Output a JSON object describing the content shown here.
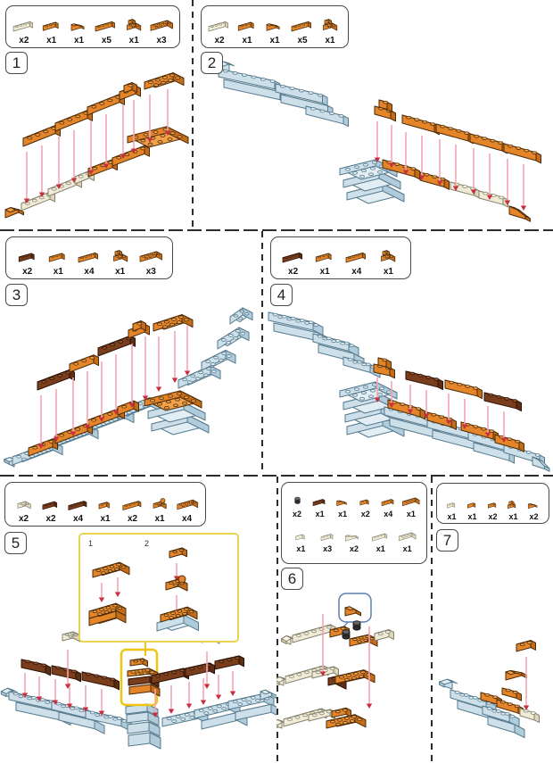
{
  "document": {
    "type": "brick-building-instructions"
  },
  "colors": {
    "orange": {
      "top": "#F3A24A",
      "front": "#E5852A",
      "side": "#C46C18",
      "line": "#4D2C09"
    },
    "cream": {
      "top": "#FAF8EC",
      "front": "#EFEBD6",
      "side": "#DCD6BC",
      "line": "#86816C"
    },
    "blue": {
      "top": "#E3EEF4",
      "front": "#CDE0EA",
      "side": "#B0CCDB",
      "line": "#567A8E"
    },
    "brown": {
      "top": "#96552C",
      "front": "#7A3E1C",
      "side": "#5E2E13",
      "line": "#2B1206"
    },
    "black": {
      "top": "#6B6B6B",
      "front": "#404040",
      "side": "#2E2E2E",
      "line": "#111111"
    },
    "arrow_stem": "#F3A7B3",
    "arrow_head": "#C72F40",
    "inset_border": "#E8D44F",
    "highlight": "#EFC514",
    "callout_border": "#5B7FB0",
    "box_border": "#4A4A4A",
    "divider": "#2B2B2B"
  },
  "steps": [
    {
      "number": "1",
      "parts": [
        {
          "shape": "1x4",
          "color": "cream",
          "qty": "x2"
        },
        {
          "shape": "1x3",
          "color": "orange",
          "qty": "x1"
        },
        {
          "shape": "slope",
          "color": "orange",
          "qty": "x1"
        },
        {
          "shape": "1x4",
          "color": "orange",
          "qty": "x5"
        },
        {
          "shape": "corner",
          "color": "orange",
          "qty": "x1"
        },
        {
          "shape": "2x4",
          "color": "orange",
          "qty": "x3"
        }
      ]
    },
    {
      "number": "2",
      "parts": [
        {
          "shape": "1x4",
          "color": "cream",
          "qty": "x2"
        },
        {
          "shape": "1x3",
          "color": "orange",
          "qty": "x1"
        },
        {
          "shape": "slope",
          "color": "orange",
          "qty": "x1"
        },
        {
          "shape": "1x4",
          "color": "orange",
          "qty": "x5"
        },
        {
          "shape": "corner",
          "color": "orange",
          "qty": "x1"
        }
      ]
    },
    {
      "number": "3",
      "parts": [
        {
          "shape": "1x3",
          "color": "brown",
          "qty": "x2"
        },
        {
          "shape": "1x3",
          "color": "orange",
          "qty": "x1"
        },
        {
          "shape": "1x4",
          "color": "orange",
          "qty": "x4"
        },
        {
          "shape": "corner",
          "color": "orange",
          "qty": "x1"
        },
        {
          "shape": "2x4",
          "color": "orange",
          "qty": "x3"
        }
      ]
    },
    {
      "number": "4",
      "parts": [
        {
          "shape": "1x4",
          "color": "brown",
          "qty": "x2"
        },
        {
          "shape": "1x3",
          "color": "orange",
          "qty": "x1"
        },
        {
          "shape": "1x4",
          "color": "orange",
          "qty": "x4"
        },
        {
          "shape": "corner",
          "color": "orange",
          "qty": "x1"
        }
      ]
    },
    {
      "number": "5",
      "inset_labels": [
        "1",
        "2"
      ],
      "parts": [
        {
          "shape": "2x2",
          "color": "cream",
          "qty": "x2"
        },
        {
          "shape": "1x3",
          "color": "brown",
          "qty": "x2"
        },
        {
          "shape": "1x4",
          "color": "brown",
          "qty": "x4"
        },
        {
          "shape": "1x2",
          "color": "orange",
          "qty": "x1"
        },
        {
          "shape": "1x4",
          "color": "orange",
          "qty": "x2"
        },
        {
          "shape": "corner-knob",
          "color": "orange",
          "qty": "x1"
        },
        {
          "shape": "2x4",
          "color": "orange",
          "qty": "x4"
        }
      ]
    },
    {
      "number": "6",
      "parts_rows": [
        [
          {
            "shape": "round",
            "color": "black",
            "qty": "x2"
          },
          {
            "shape": "1x3",
            "color": "brown",
            "qty": "x1"
          },
          {
            "shape": "slope",
            "color": "orange",
            "qty": "x1"
          },
          {
            "shape": "1x2",
            "color": "orange",
            "qty": "x2"
          },
          {
            "shape": "1x3",
            "color": "orange",
            "qty": "x4"
          },
          {
            "shape": "2x4",
            "color": "orange",
            "qty": "x1"
          }
        ],
        [
          {
            "shape": "tile-1x2",
            "color": "cream",
            "qty": "x1"
          },
          {
            "shape": "1x3",
            "color": "cream",
            "qty": "x3"
          },
          {
            "shape": "slope-long",
            "color": "cream",
            "qty": "x2"
          },
          {
            "shape": "1x4",
            "color": "cream",
            "qty": "x1"
          },
          {
            "shape": "2x4",
            "color": "cream",
            "qty": "x1"
          }
        ]
      ]
    },
    {
      "number": "7",
      "parts": [
        {
          "shape": "1x2",
          "color": "cream",
          "qty": "x1"
        },
        {
          "shape": "tile-1x2",
          "color": "orange",
          "qty": "x1"
        },
        {
          "shape": "1x2",
          "color": "orange",
          "qty": "x2"
        },
        {
          "shape": "corner-stack",
          "color": "orange",
          "qty": "x1"
        },
        {
          "shape": "slope",
          "color": "orange",
          "qty": "x2"
        }
      ]
    }
  ]
}
